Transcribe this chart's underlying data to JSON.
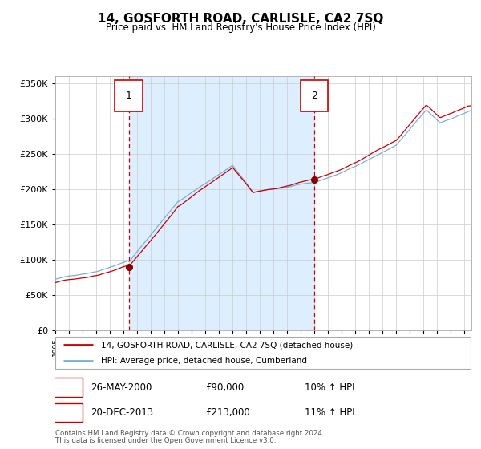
{
  "title": "14, GOSFORTH ROAD, CARLISLE, CA2 7SQ",
  "subtitle": "Price paid vs. HM Land Registry's House Price Index (HPI)",
  "legend_line1": "14, GOSFORTH ROAD, CARLISLE, CA2 7SQ (detached house)",
  "legend_line2": "HPI: Average price, detached house, Cumberland",
  "annotation1_date": "26-MAY-2000",
  "annotation1_price": "£90,000",
  "annotation1_hpi": "10% ↑ HPI",
  "annotation2_date": "20-DEC-2013",
  "annotation2_price": "£213,000",
  "annotation2_hpi": "11% ↑ HPI",
  "footnote1": "Contains HM Land Registry data © Crown copyright and database right 2024.",
  "footnote2": "This data is licensed under the Open Government Licence v3.0.",
  "sale1_year": 2000.38,
  "sale1_value": 90000,
  "sale2_year": 2013.96,
  "sale2_value": 213000,
  "red_color": "#cc0000",
  "blue_color": "#7bafd4",
  "bg_color": "#ddeeff",
  "grid_color": "#cccccc",
  "dashed_color": "#cc0000",
  "ylim_min": 0,
  "ylim_max": 360000,
  "xlim_min": 1995,
  "xlim_max": 2025.5
}
